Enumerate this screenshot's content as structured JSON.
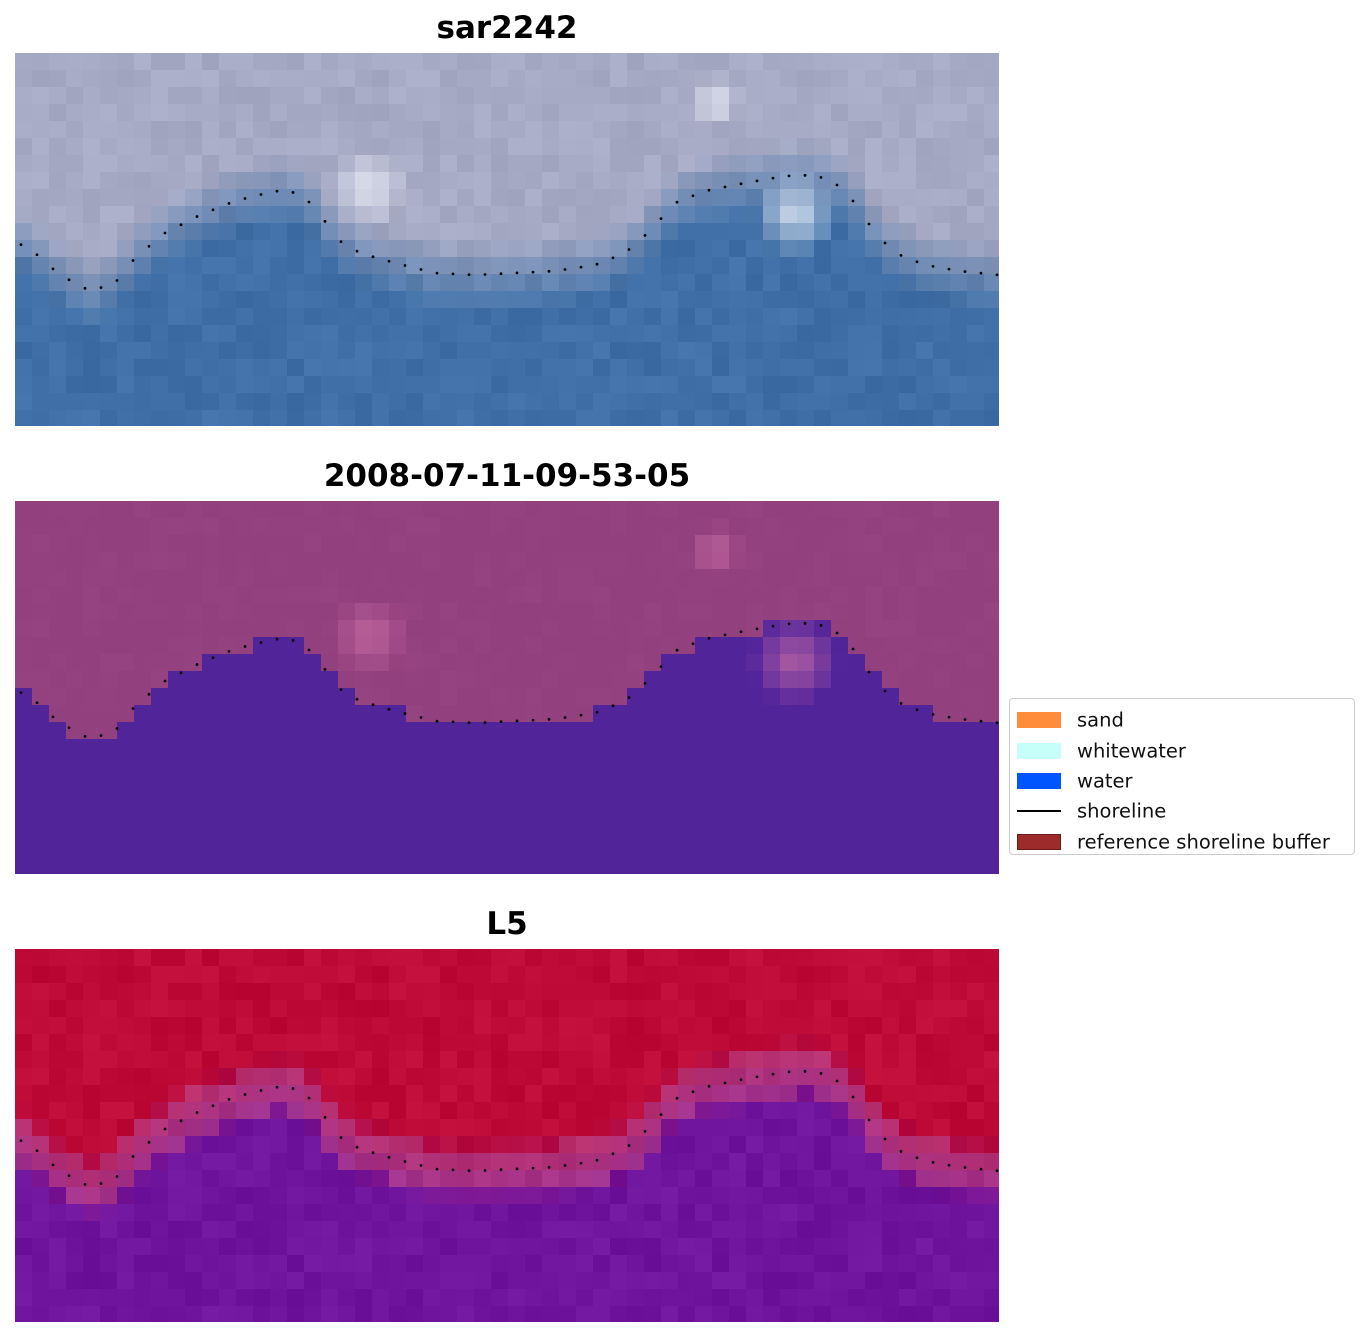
{
  "panels": [
    {
      "title": "sar2242",
      "style": "rgb"
    },
    {
      "title": "2008-07-11-09-53-05",
      "style": "classified"
    },
    {
      "title": "L5",
      "style": "index"
    }
  ],
  "legend": {
    "items": [
      {
        "label": "sand",
        "kind": "patch",
        "color": "#ff8c3a"
      },
      {
        "label": "whitewater",
        "kind": "patch",
        "color": "#c6fff9"
      },
      {
        "label": "water",
        "kind": "patch",
        "color": "#0055ff"
      },
      {
        "label": "shoreline",
        "kind": "line",
        "color": "#000000"
      },
      {
        "label": "reference shoreline buffer",
        "kind": "patch",
        "color": "#9e2b2b"
      }
    ]
  },
  "colors": {
    "rgb_land": "#a6aac4",
    "rgb_water": "#3f6fa6",
    "classified_land": "#93407e",
    "classified_water": "#52249a",
    "index_land": "#bd0a36",
    "index_water": "#6f149c",
    "shoreline_points": "#000000"
  }
}
